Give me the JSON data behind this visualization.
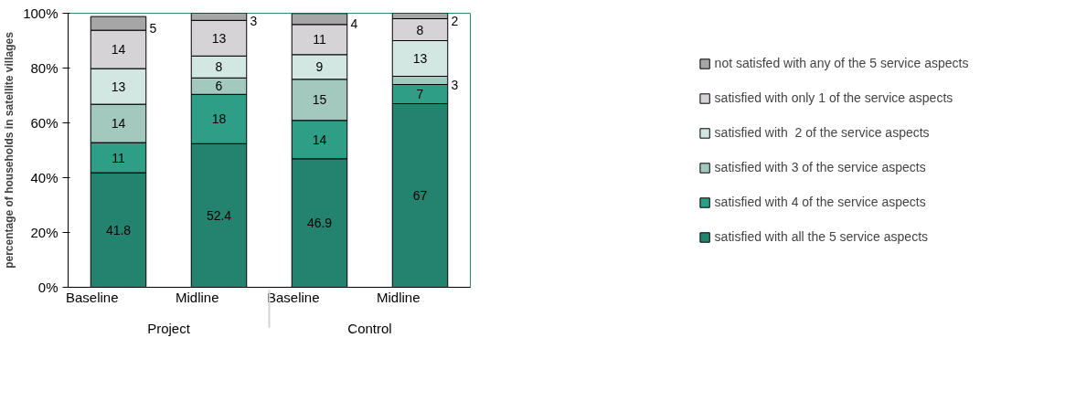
{
  "chart_data": {
    "type": "bar",
    "stacked": true,
    "ylabel": "percentage of households in satellite villages",
    "categories": [
      "Baseline",
      "Midline",
      "Baseline",
      "Midline"
    ],
    "annotations": [
      "Project",
      "Control"
    ],
    "ylim": [
      0,
      100
    ],
    "yticks": [
      {
        "value": 0,
        "label": "0%"
      },
      {
        "value": 20,
        "label": "20%"
      },
      {
        "value": 40,
        "label": "40%"
      },
      {
        "value": 60,
        "label": "60%"
      },
      {
        "value": 80,
        "label": "80%"
      },
      {
        "value": 100,
        "label": "100%"
      }
    ],
    "grid": false,
    "legend": "right",
    "data_labels": true,
    "series": [
      {
        "name": "satisfied with all the 5 service aspects",
        "color": "#23836f",
        "values": [
          41.8,
          52.4,
          46.9,
          67
        ]
      },
      {
        "name": "satisfied with 4 of the service aspects",
        "color": "#2e9e86",
        "values": [
          11,
          18,
          14,
          7
        ]
      },
      {
        "name": "satisfied with 3 of the service aspects",
        "color": "#a3c9bf",
        "values": [
          14,
          6,
          15,
          3
        ]
      },
      {
        "name": "satisfied with  2 of the service aspects",
        "color": "#d3e7e2",
        "values": [
          13,
          8,
          9,
          13
        ]
      },
      {
        "name": "satisfied with only 1 of the service aspects",
        "color": "#d6d3d6",
        "values": [
          14,
          13,
          11,
          8
        ]
      },
      {
        "name": "not satisfed with any of the 5 service aspects",
        "color": "#a6a6a6",
        "values": [
          5,
          3,
          4,
          2
        ]
      }
    ]
  }
}
